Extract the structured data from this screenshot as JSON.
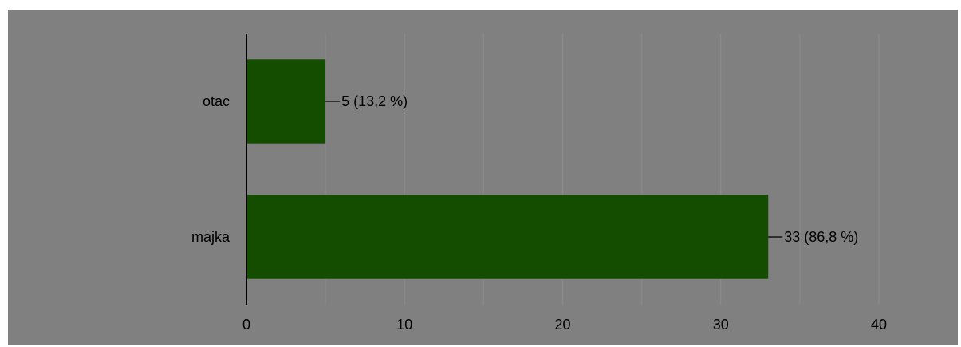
{
  "chart_data": {
    "type": "bar",
    "orientation": "horizontal",
    "categories": [
      "otac",
      "majka"
    ],
    "values": [
      5,
      33
    ],
    "data_labels": [
      "5 (13,2 %)",
      "33 (86,8 %)"
    ],
    "xlim": [
      0,
      40
    ],
    "x_ticks": [
      0,
      10,
      20,
      30,
      40
    ],
    "x_tick_labels": [
      "0",
      "10",
      "20",
      "30",
      "40"
    ],
    "grid": true,
    "bar_color": "#154d00",
    "background_color": "#808080",
    "gridline_color": "#8a8a8a",
    "axis_color": "#000000"
  }
}
